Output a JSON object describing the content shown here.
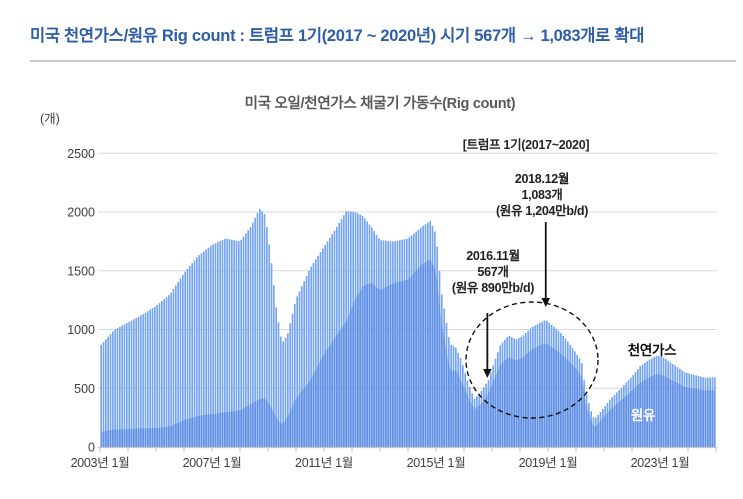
{
  "header": {
    "title": "미국 천연가스/원유 Rig count :  트럼프 1기(2017 ~ 2020년)  시기 567개 → 1,083개로 확대"
  },
  "chart_data": {
    "type": "bar",
    "title": "미국 오일/천연가스 채굴기 가동수(Rig count)",
    "unit_label": "(개)",
    "ylim": [
      0,
      2500
    ],
    "yticks": [
      0,
      500,
      1000,
      1500,
      2000,
      2500
    ],
    "ytick_labels": [
      "0",
      "500",
      "1000",
      "1500",
      "2000",
      "2500"
    ],
    "x_range_years": [
      2003,
      2025
    ],
    "xtick_years": [
      2003,
      2007,
      2011,
      2015,
      2019,
      2023
    ],
    "xtick_labels": [
      "2003년 1월",
      "2007년 1월",
      "2011년 1월",
      "2015년 1월",
      "2019년 1월",
      "2023년 1월"
    ],
    "minor_tick_every_years": 1,
    "grid": true,
    "series": [
      {
        "name": "천연가스",
        "role": "total-bars",
        "note": "bar height = total rig count (oil+gas)"
      },
      {
        "name": "원유",
        "role": "oil-overlay-area",
        "note": "darker lower area = oil rig count"
      }
    ],
    "keyframes": {
      "columns": [
        "year",
        "total_rigs",
        "oil_rigs"
      ],
      "note": "piecewise-linear keyframes of the weekly Baker-Hughes-style series shown; rendered monthly by interpolation",
      "points": [
        [
          2003.0,
          860,
          128
        ],
        [
          2003.5,
          995,
          148
        ],
        [
          2004.0,
          1060,
          152
        ],
        [
          2004.5,
          1125,
          160
        ],
        [
          2005.0,
          1200,
          160
        ],
        [
          2005.5,
          1300,
          175
        ],
        [
          2006.0,
          1480,
          228
        ],
        [
          2006.5,
          1625,
          265
        ],
        [
          2007.0,
          1720,
          280
        ],
        [
          2007.5,
          1775,
          295
        ],
        [
          2008.0,
          1750,
          312
        ],
        [
          2008.4,
          1880,
          365
        ],
        [
          2008.7,
          2030,
          408
        ],
        [
          2008.9,
          1975,
          415
        ],
        [
          2009.1,
          1620,
          345
        ],
        [
          2009.3,
          1170,
          245
        ],
        [
          2009.5,
          880,
          190
        ],
        [
          2009.7,
          960,
          255
        ],
        [
          2010.0,
          1260,
          415
        ],
        [
          2010.5,
          1520,
          560
        ],
        [
          2011.0,
          1705,
          790
        ],
        [
          2011.4,
          1850,
          930
        ],
        [
          2011.8,
          2010,
          1070
        ],
        [
          2012.1,
          2000,
          1250
        ],
        [
          2012.4,
          1965,
          1370
        ],
        [
          2012.7,
          1870,
          1400
        ],
        [
          2013.0,
          1762,
          1335
        ],
        [
          2013.5,
          1748,
          1395
        ],
        [
          2014.0,
          1775,
          1425
        ],
        [
          2014.5,
          1875,
          1555
        ],
        [
          2014.8,
          1925,
          1595
        ],
        [
          2015.0,
          1810,
          1500
        ],
        [
          2015.2,
          1310,
          1050
        ],
        [
          2015.5,
          875,
          645
        ],
        [
          2015.7,
          850,
          655
        ],
        [
          2015.9,
          745,
          565
        ],
        [
          2016.1,
          580,
          450
        ],
        [
          2016.37,
          408,
          318
        ],
        [
          2016.6,
          470,
          365
        ],
        [
          2016.87,
          567,
          450
        ],
        [
          2017.0,
          665,
          535
        ],
        [
          2017.3,
          870,
          700
        ],
        [
          2017.6,
          950,
          763
        ],
        [
          2017.85,
          915,
          735
        ],
        [
          2018.1,
          945,
          760
        ],
        [
          2018.4,
          1015,
          825
        ],
        [
          2018.7,
          1055,
          865
        ],
        [
          2018.92,
          1083,
          885
        ],
        [
          2019.1,
          1045,
          855
        ],
        [
          2019.4,
          985,
          805
        ],
        [
          2019.7,
          900,
          740
        ],
        [
          2020.0,
          800,
          670
        ],
        [
          2020.2,
          728,
          600
        ],
        [
          2020.35,
          465,
          360
        ],
        [
          2020.6,
          255,
          180
        ],
        [
          2020.7,
          247,
          172
        ],
        [
          2020.9,
          305,
          232
        ],
        [
          2021.2,
          400,
          310
        ],
        [
          2021.6,
          500,
          398
        ],
        [
          2022.0,
          600,
          480
        ],
        [
          2022.3,
          690,
          550
        ],
        [
          2022.6,
          740,
          590
        ],
        [
          2022.9,
          780,
          624
        ],
        [
          2023.1,
          765,
          612
        ],
        [
          2023.5,
          700,
          560
        ],
        [
          2023.9,
          635,
          510
        ],
        [
          2024.2,
          615,
          497
        ],
        [
          2024.6,
          590,
          483
        ],
        [
          2024.95,
          593,
          482
        ]
      ]
    },
    "annotations": {
      "period_label": "[트럼프 1기(2017~2020]",
      "peak": {
        "line1": "2018.12월",
        "line2": "1,083개",
        "line3": "(원유 1,204만b/d)",
        "value": 1083,
        "x_year": 2018.92
      },
      "dip": {
        "line1": "2016.11월",
        "line2": "567개",
        "line3": "(원유 890만b/d)",
        "value": 567,
        "x_year": 2016.87
      },
      "gas_label": "천연가스",
      "oil_label": "원유"
    },
    "colors": {
      "bar": "#78a6f0",
      "oil_overlay": "#2f66d3",
      "oil_overlay_opacity": 0.32,
      "grid": "#d9d9d9",
      "axis_line": "#c4c4c4",
      "axis_text": "#3f3f3f",
      "annotation_ink": "#111111",
      "header_blue": "#2d5ca8",
      "title_gray": "#595959"
    }
  }
}
